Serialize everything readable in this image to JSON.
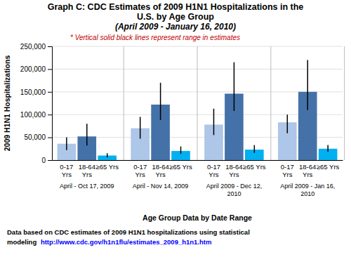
{
  "chart_data": {
    "type": "bar",
    "title": "Graph C: CDC Estimates of 2009 H1N1 Hospitalizations in the\nU.S. by Age Group",
    "subtitle": "(April 2009 - January 16, 2010)",
    "x_label": "Age Group Data by Date Range",
    "y_label": "2009 H1N1 Hospitalizations",
    "annotations": [
      {
        "text": "* Vertical solid black lines represent range in estimates",
        "color": "#c00000"
      },
      {
        "text": "Data based on CDC estimates of 2009 H1N1 hospitalizations  using  statistical"
      },
      {
        "text": "modeling "
      },
      {
        "text": "http://www.cdc.gov/h1n1flu/estimates_2009_h1n1.htm",
        "color": "blue"
      }
    ],
    "categories": [
      "April - Oct 17, 2009",
      "April - Nov 14, 2009",
      "April 2009 - Dec 12,\n2010",
      "April 2009 - Jan 16,\n2010"
    ],
    "series": [
      {
        "name": "0-17\nYrs",
        "color": "#aec6e8",
        "values": [
          36000,
          70000,
          78000,
          83000
        ],
        "error_low": [
          22000,
          47000,
          55000,
          59000
        ],
        "error_high": [
          50000,
          95000,
          113000,
          100000
        ]
      },
      {
        "name": "18-64\nYrs",
        "color": "#4472a8",
        "values": [
          52000,
          122000,
          146000,
          150000
        ],
        "error_low": [
          32000,
          88000,
          108000,
          110000
        ],
        "error_high": [
          80000,
          170000,
          215000,
          220000
        ]
      },
      {
        "name": "≥65 Yrs",
        "color": "#00b0f0",
        "values": [
          10000,
          20000,
          23000,
          25000
        ],
        "error_low": [
          6000,
          14000,
          16000,
          18000
        ],
        "error_high": [
          15000,
          30000,
          33000,
          33000
        ]
      }
    ],
    "ylim": [
      0,
      250000
    ],
    "yticks": [
      0,
      {
        "value": 50000,
        "label": "50,000"
      },
      {
        "value": 100000,
        "label": "100,000"
      },
      {
        "value": 150000,
        "label": "150,000"
      },
      {
        "value": 200000,
        "label": "200,000"
      },
      {
        "value": 250000,
        "label": "250,000"
      }
    ],
    "grid": true
  }
}
